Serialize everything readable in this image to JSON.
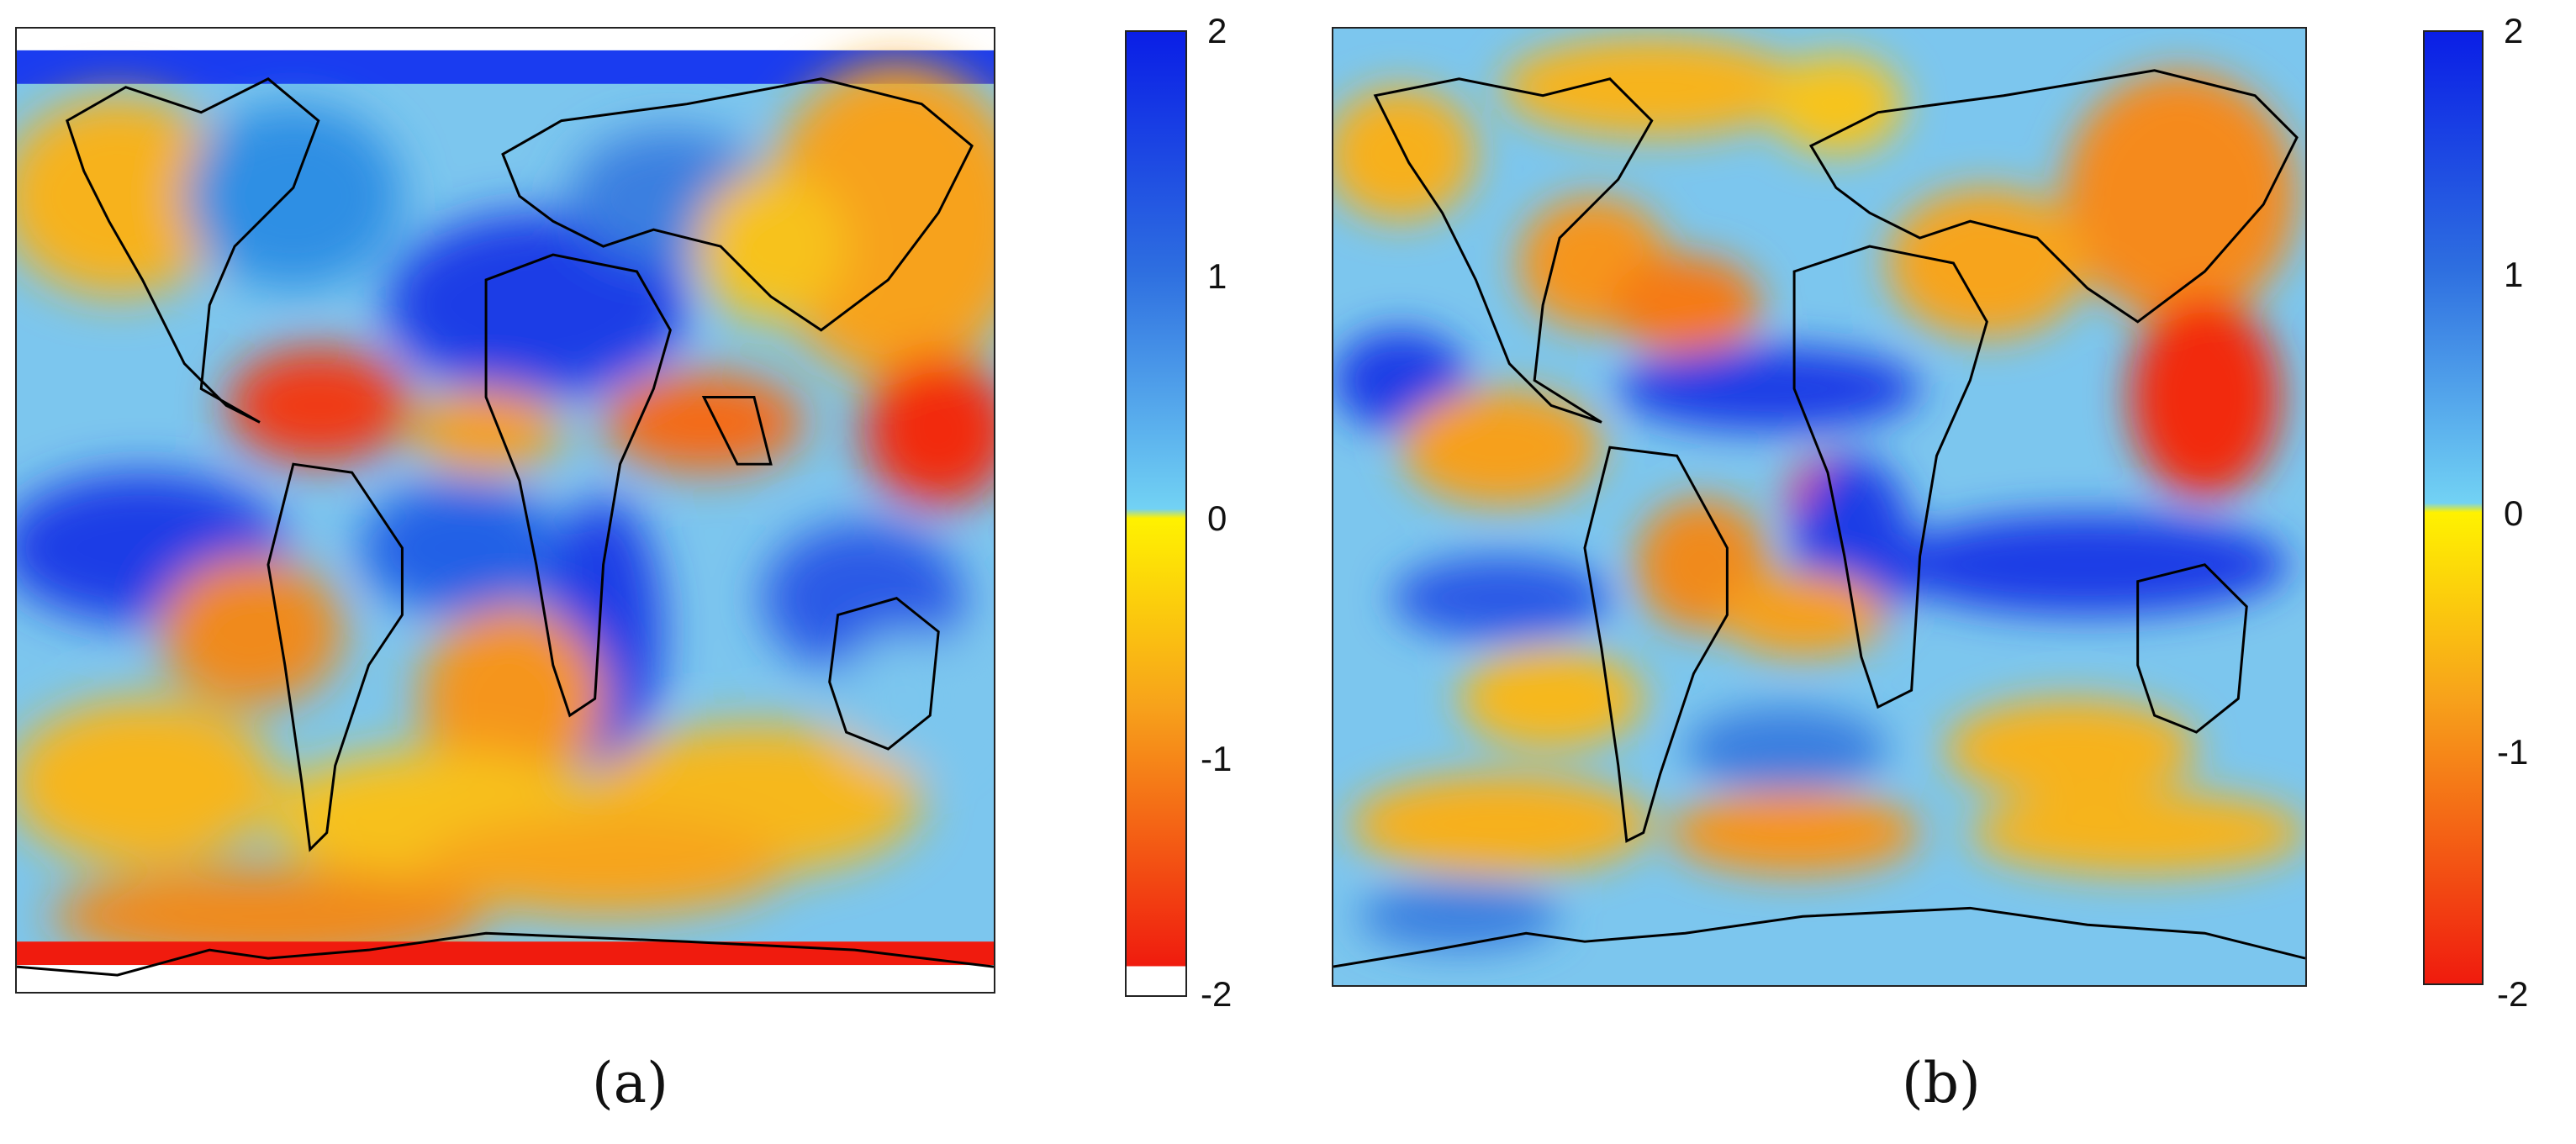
{
  "panels": [
    {
      "caption": "(a)",
      "colorbar": {
        "min": -2,
        "max": 2,
        "ticks": [
          "2",
          "1",
          "0",
          "-1",
          "-2"
        ]
      }
    },
    {
      "caption": "(b)",
      "colorbar": {
        "min": -2,
        "max": 2,
        "ticks": [
          "2",
          "1",
          "0",
          "-1",
          "-2"
        ]
      }
    }
  ],
  "colors": {
    "deep_blue": "#0a1ee6",
    "mid_blue": "#2e7fe0",
    "light_blue": "#72d2f4",
    "yellow": "#fff200",
    "orange": "#f7a21b",
    "red": "#f01b0e",
    "coastline": "#000000"
  }
}
